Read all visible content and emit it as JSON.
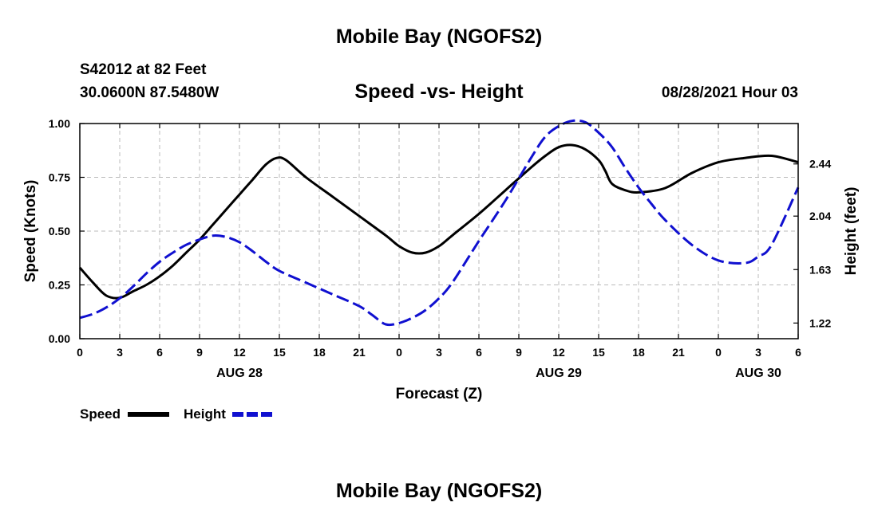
{
  "header": {
    "title": "Mobile Bay (NGOFS2)",
    "station": "S42012 at 82 Feet",
    "coords": "30.0600N  87.5480W",
    "subtitle": "Speed -vs- Height",
    "datetime": "08/28/2021 Hour 03"
  },
  "footer": {
    "title": "Mobile Bay (NGOFS2)"
  },
  "legend": {
    "speed_label": "Speed",
    "height_label": "Height"
  },
  "colors": {
    "speed": "#000000",
    "height": "#1010d0",
    "grid": "#bbbbbb"
  },
  "chart_data": {
    "type": "line",
    "title": "Speed -vs- Height",
    "xlabel": "Forecast (Z)",
    "ylabel": "Speed (Knots)",
    "y2label": "Height (feet)",
    "xlim": [
      0,
      54
    ],
    "ylim": [
      0,
      1.0
    ],
    "y2lim": [
      1.1,
      2.75
    ],
    "grid": true,
    "legend_position": "bottom-left",
    "x_ticks": [
      0,
      3,
      6,
      9,
      12,
      15,
      18,
      21,
      24,
      27,
      30,
      33,
      36,
      39,
      42,
      45,
      48,
      51,
      54
    ],
    "x_tick_labels": [
      "0",
      "3",
      "6",
      "9",
      "12",
      "15",
      "18",
      "21",
      "0",
      "3",
      "6",
      "9",
      "12",
      "15",
      "18",
      "21",
      "0",
      "3",
      "6"
    ],
    "date_labels": [
      {
        "x": 12,
        "label": "AUG 28"
      },
      {
        "x": 36,
        "label": "AUG 29"
      },
      {
        "x": 51,
        "label": "AUG 30"
      }
    ],
    "y_ticks": [
      0,
      0.25,
      0.5,
      0.75,
      1.0
    ],
    "y_tick_labels": [
      "0.00",
      "0.25",
      "0.50",
      "0.75",
      "1.00"
    ],
    "y2_ticks": [
      1.22,
      1.63,
      2.04,
      2.44
    ],
    "y2_tick_labels": [
      "1.22",
      "1.63",
      "2.04",
      "2.44"
    ],
    "series": [
      {
        "name": "Speed",
        "axis": "left",
        "style": "solid",
        "x": [
          0,
          1,
          2,
          3,
          4,
          5,
          6,
          7,
          8,
          9,
          10,
          11,
          12,
          13,
          14,
          14.8,
          15.5,
          17,
          19,
          21,
          23,
          24,
          25,
          26,
          27,
          28,
          30,
          32,
          34,
          35,
          36,
          37,
          38,
          39,
          39.5,
          40,
          41,
          42,
          44,
          46,
          48,
          50,
          52,
          54
        ],
        "y": [
          0.33,
          0.26,
          0.2,
          0.19,
          0.22,
          0.25,
          0.29,
          0.34,
          0.4,
          0.46,
          0.53,
          0.6,
          0.67,
          0.74,
          0.81,
          0.84,
          0.83,
          0.75,
          0.66,
          0.57,
          0.48,
          0.43,
          0.4,
          0.4,
          0.43,
          0.48,
          0.58,
          0.69,
          0.8,
          0.85,
          0.89,
          0.9,
          0.88,
          0.83,
          0.78,
          0.72,
          0.69,
          0.68,
          0.7,
          0.77,
          0.82,
          0.84,
          0.85,
          0.82
        ]
      },
      {
        "name": "Height",
        "axis": "right",
        "style": "dashed",
        "x": [
          0,
          1,
          2,
          3,
          4,
          5,
          6,
          7,
          8,
          9,
          10,
          11,
          12,
          13,
          14,
          15,
          17,
          19,
          21,
          22,
          23,
          24,
          25,
          26,
          27,
          28,
          30,
          32,
          34,
          35,
          36,
          37,
          38,
          39,
          40,
          41,
          42,
          43,
          44,
          46,
          48,
          50,
          51,
          52,
          54
        ],
        "y": [
          1.26,
          1.29,
          1.34,
          1.41,
          1.5,
          1.6,
          1.69,
          1.76,
          1.82,
          1.86,
          1.89,
          1.88,
          1.84,
          1.77,
          1.69,
          1.62,
          1.53,
          1.44,
          1.35,
          1.28,
          1.21,
          1.22,
          1.26,
          1.32,
          1.41,
          1.53,
          1.85,
          2.16,
          2.5,
          2.65,
          2.73,
          2.77,
          2.76,
          2.68,
          2.57,
          2.41,
          2.26,
          2.13,
          2.01,
          1.82,
          1.7,
          1.68,
          1.73,
          1.82,
          2.26
        ]
      }
    ]
  }
}
